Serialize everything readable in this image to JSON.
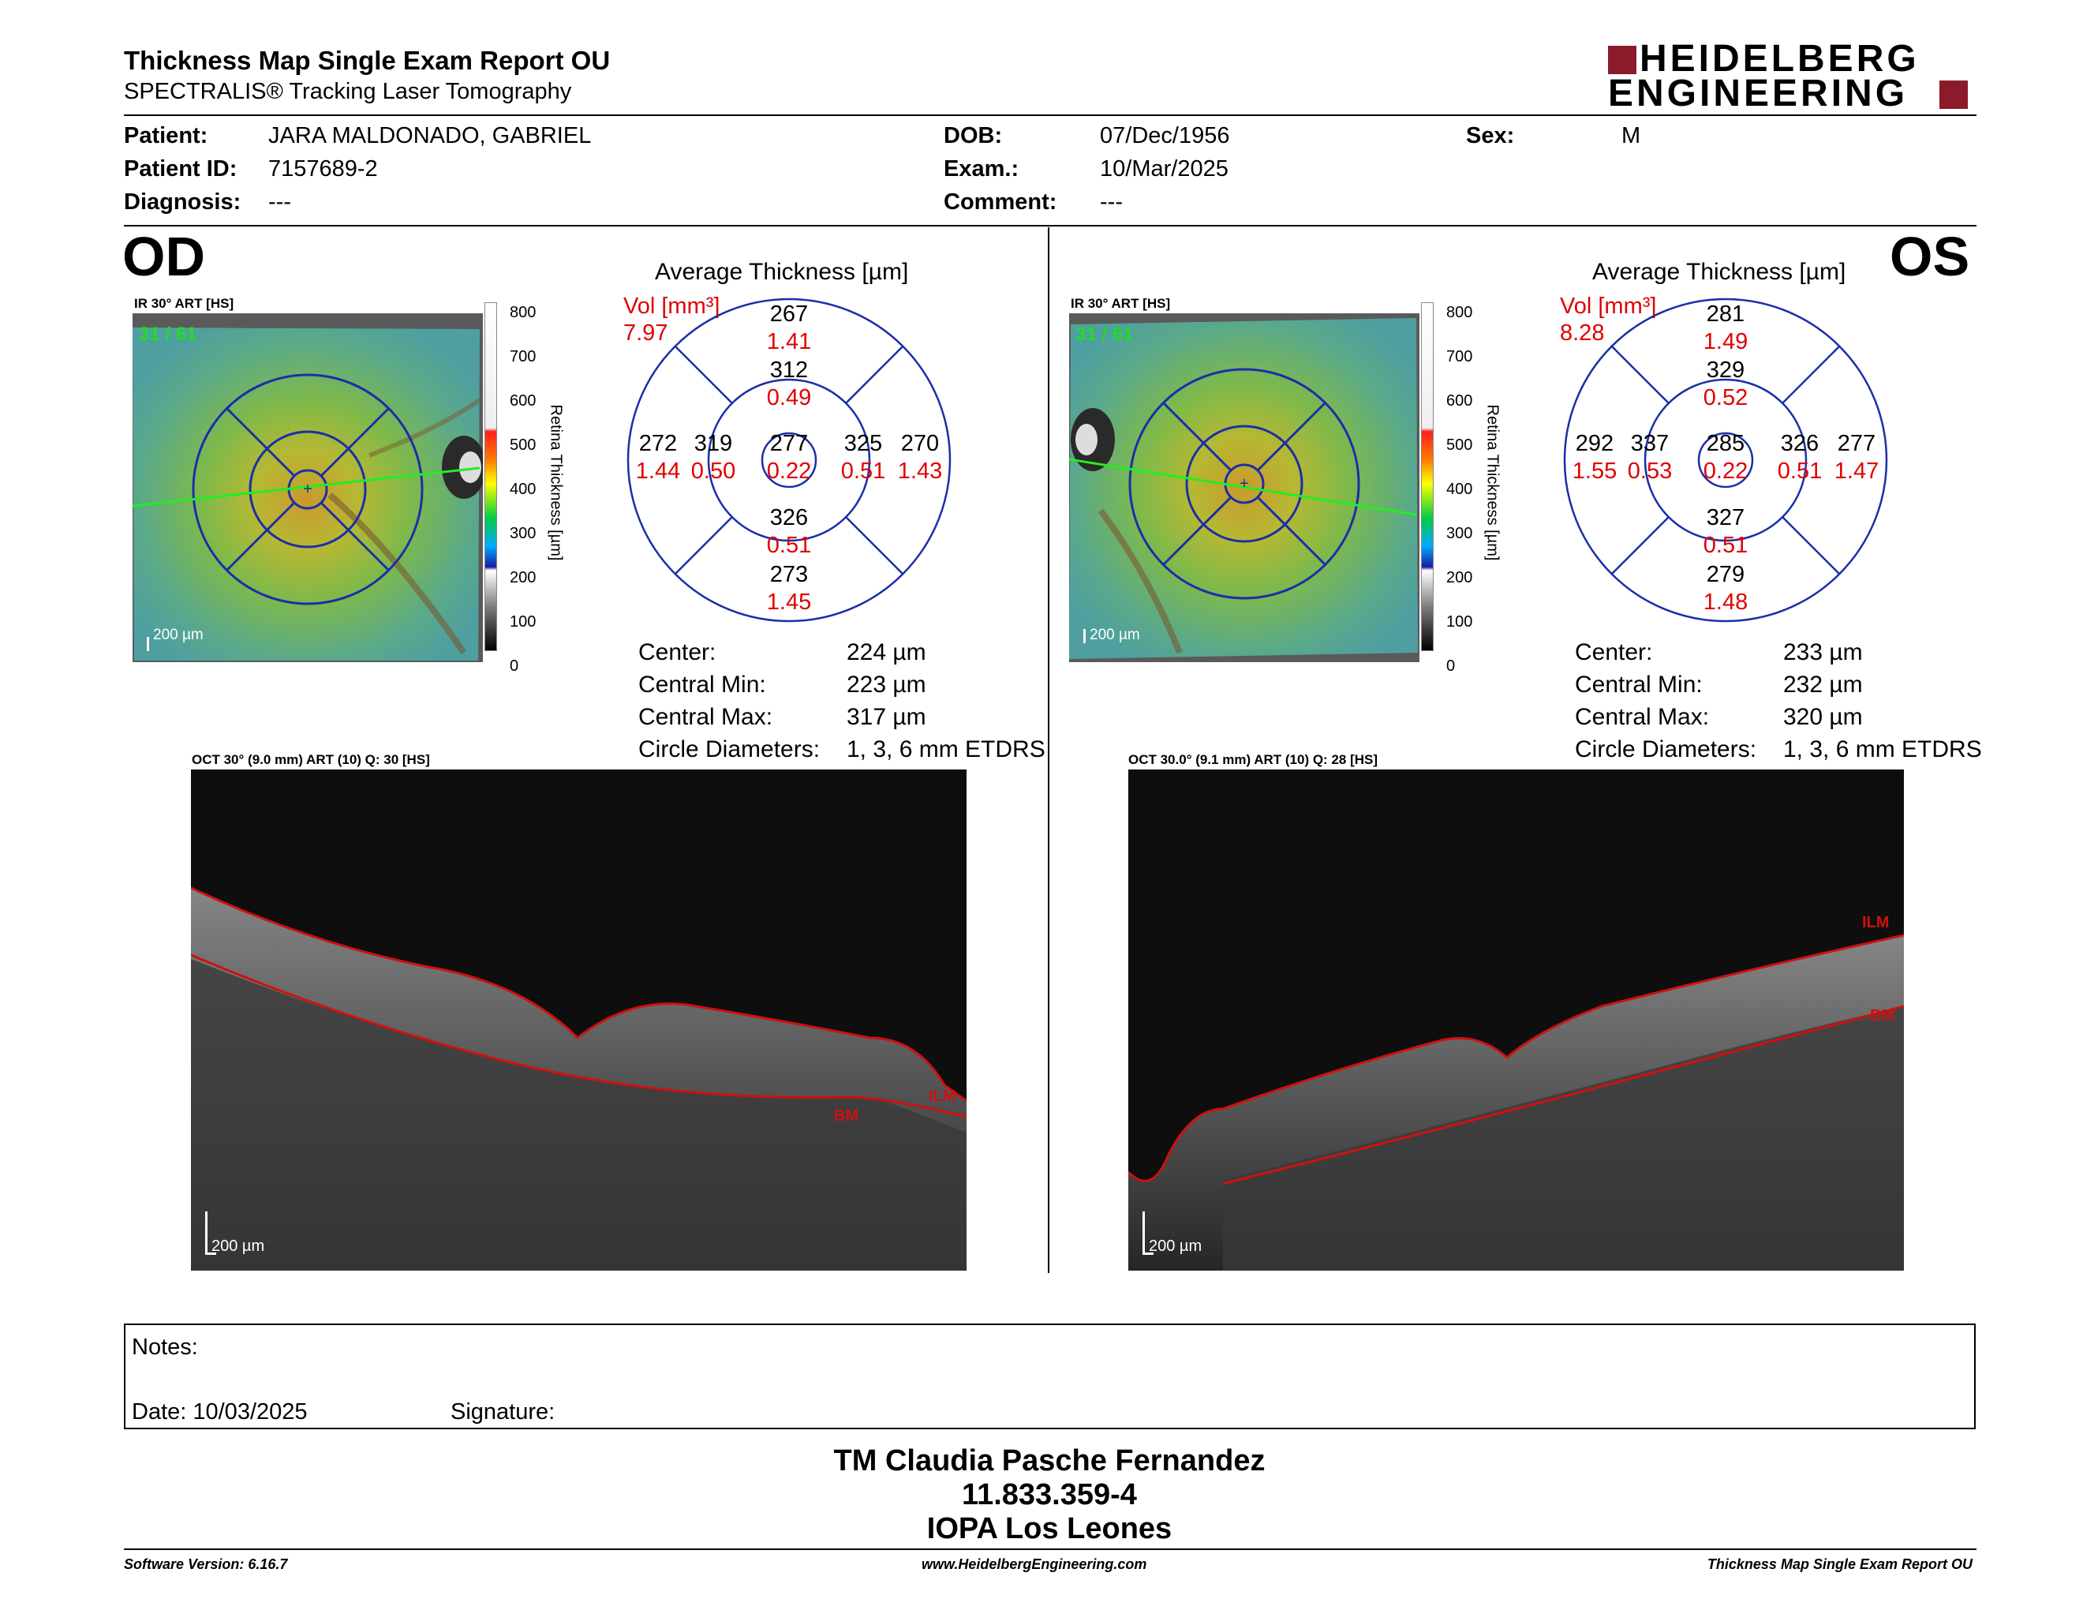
{
  "report": {
    "title": "Thickness Map Single Exam Report OU",
    "subtitle": "SPECTRALIS® Tracking Laser Tomography",
    "logo_line1": "HEIDELBERG",
    "logo_line2": "ENGINEERING"
  },
  "patient": {
    "patient_label": "Patient:",
    "patient_value": "JARA MALDONADO, GABRIEL",
    "id_label": "Patient ID:",
    "id_value": "7157689-2",
    "diagnosis_label": "Diagnosis:",
    "diagnosis_value": "---",
    "dob_label": "DOB:",
    "dob_value": "07/Dec/1956",
    "exam_label": "Exam.:",
    "exam_value": "10/Mar/2025",
    "comment_label": "Comment:",
    "comment_value": "---",
    "sex_label": "Sex:",
    "sex_value": "M"
  },
  "od": {
    "eye": "OD",
    "ir_label": "IR 30° ART [HS]",
    "frame_count": "31 / 61",
    "scale_bar": "200 µm",
    "colorbar_ticks": [
      "800",
      "700",
      "600",
      "500",
      "400",
      "300",
      "200",
      "100",
      "0"
    ],
    "colorbar_title": "Retina Thickness [µm]",
    "avg_title": "Average Thickness [µm]",
    "vol_label": "Vol [mm³]",
    "vol_value": "7.97",
    "sectors": {
      "outer_top": [
        "267",
        "1.41"
      ],
      "inner_top": [
        "312",
        "0.49"
      ],
      "outer_left": [
        "272",
        "1.44"
      ],
      "inner_left": [
        "319",
        "0.50"
      ],
      "center": [
        "277",
        "0.22"
      ],
      "inner_right": [
        "325",
        "0.51"
      ],
      "outer_right": [
        "270",
        "1.43"
      ],
      "inner_bottom": [
        "326",
        "0.51"
      ],
      "outer_bottom": [
        "273",
        "1.45"
      ]
    },
    "stats": [
      {
        "label": "Center:",
        "value": "224 µm"
      },
      {
        "label": "Central Min:",
        "value": "223 µm"
      },
      {
        "label": "Central Max:",
        "value": "317 µm"
      },
      {
        "label": "Circle Diameters:",
        "value": "1, 3, 6 mm ETDRS"
      }
    ],
    "oct_label": "OCT 30° (9.0 mm) ART (10) Q: 30 [HS]",
    "oct_scale": "200 µm",
    "ilm": "ILM",
    "bm": "BM"
  },
  "os": {
    "eye": "OS",
    "ir_label": "IR 30° ART [HS]",
    "frame_count": "31 / 61",
    "scale_bar": "200 µm",
    "colorbar_ticks": [
      "800",
      "700",
      "600",
      "500",
      "400",
      "300",
      "200",
      "100",
      "0"
    ],
    "colorbar_title": "Retina Thickness [µm]",
    "avg_title": "Average Thickness [µm]",
    "vol_label": "Vol [mm³]",
    "vol_value": "8.28",
    "sectors": {
      "outer_top": [
        "281",
        "1.49"
      ],
      "inner_top": [
        "329",
        "0.52"
      ],
      "outer_left": [
        "292",
        "1.55"
      ],
      "inner_left": [
        "337",
        "0.53"
      ],
      "center": [
        "285",
        "0.22"
      ],
      "inner_right": [
        "326",
        "0.51"
      ],
      "outer_right": [
        "277",
        "1.47"
      ],
      "inner_bottom": [
        "327",
        "0.51"
      ],
      "outer_bottom": [
        "279",
        "1.48"
      ]
    },
    "stats": [
      {
        "label": "Center:",
        "value": "233 µm"
      },
      {
        "label": "Central Min:",
        "value": "232 µm"
      },
      {
        "label": "Central Max:",
        "value": "320 µm"
      },
      {
        "label": "Circle Diameters:",
        "value": "1, 3, 6 mm ETDRS"
      }
    ],
    "oct_label": "OCT 30.0° (9.1 mm) ART (10) Q: 28 [HS]",
    "oct_scale": "200 µm",
    "ilm": "ILM",
    "bm": "BM"
  },
  "notes": {
    "notes_label": "Notes:",
    "date_label": "Date: 10/03/2025",
    "signature_label": "Signature:"
  },
  "signer": {
    "name": "TM Claudia Pasche Fernandez",
    "id": "11.833.359-4",
    "institution": "IOPA Los Leones"
  },
  "footer": {
    "software": "Software Version: 6.16.7",
    "website": "www.HeidelbergEngineering.com",
    "report_name": "Thickness Map Single Exam Report OU"
  },
  "colors": {
    "accent_red": "#8b1a2b",
    "grid_blue": "#1a2fa8",
    "volume_red": "#e00000"
  }
}
